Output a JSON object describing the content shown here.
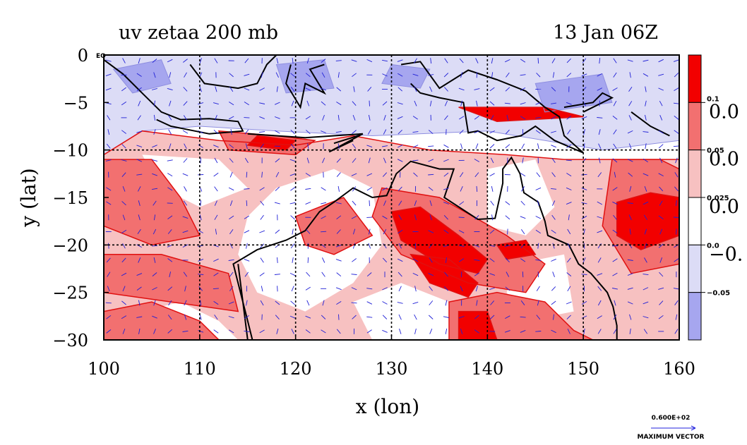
{
  "chart_data": {
    "type": "heatmap",
    "title_left": "uv zetaa 200 mb",
    "title_right": "13 Jan 06Z",
    "xlabel": "x (lon)",
    "ylabel": "y (lat)",
    "xlim": [
      100,
      160
    ],
    "ylim": [
      -30,
      0
    ],
    "x_ticks": [
      "100",
      "110",
      "120",
      "130",
      "140",
      "150",
      "160"
    ],
    "y_ticks": [
      "0",
      "−5",
      "−10",
      "−15",
      "−20",
      "−25",
      "−30"
    ],
    "x_tick_values": [
      100,
      110,
      120,
      130,
      140,
      150,
      160
    ],
    "y_tick_values": [
      0,
      -5,
      -10,
      -15,
      -20,
      -25,
      -30
    ],
    "grid_lon": [
      110,
      120,
      130,
      140,
      150
    ],
    "grid_lat": [
      -10,
      -20
    ],
    "overlays": [
      "wind vectors",
      "coastlines"
    ],
    "colorbar": {
      "levels_small": [
        "0.1",
        "0.05",
        "0.025",
        "0.0",
        "−0.05"
      ],
      "labels_big": [
        "0.0",
        "0.0",
        "0.0",
        "−0."
      ],
      "colors": [
        "#f20000",
        "#f27070",
        "#f7c1c1",
        "#ffffff",
        "#dcdcf6",
        "#a6a6ef"
      ]
    },
    "vector_label_value": "0.600E+02",
    "vector_label_text": "MAXIMUM VECTOR",
    "corner_label": "EQ"
  }
}
